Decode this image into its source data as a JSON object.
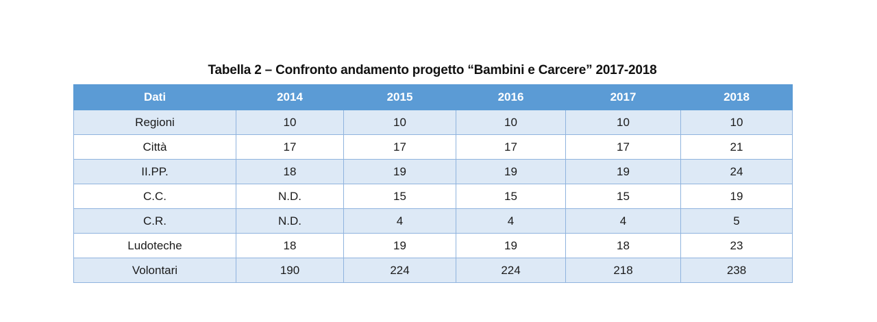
{
  "title": "Tabella 2 – Confronto andamento progetto “Bambini e Carcere” 2017-2018",
  "headers": [
    "Dati",
    "2014",
    "2015",
    "2016",
    "2017",
    "2018"
  ],
  "rows": [
    [
      "Regioni",
      "10",
      "10",
      "10",
      "10",
      "10"
    ],
    [
      "Città",
      "17",
      "17",
      "17",
      "17",
      "21"
    ],
    [
      "II.PP.",
      "18",
      "19",
      "19",
      "19",
      "24"
    ],
    [
      "C.C.",
      "N.D.",
      "15",
      "15",
      "15",
      "19"
    ],
    [
      "C.R.",
      "N.D.",
      "4",
      "4",
      "4",
      "5"
    ],
    [
      "Ludoteche",
      "18",
      "19",
      "19",
      "18",
      "23"
    ],
    [
      "Volontari",
      "190",
      "224",
      "224",
      "218",
      "238"
    ]
  ],
  "colors": {
    "header_bg": "#5b9bd5",
    "stripe_bg": "#dde9f6",
    "border": "#8fb3de"
  }
}
